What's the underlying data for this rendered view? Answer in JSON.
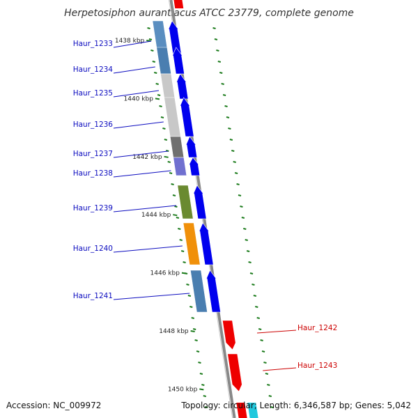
{
  "title": "Herpetosiphon aurantiacus ATCC 23779, complete genome",
  "footer": {
    "accession": "Accession: NC_009972",
    "summary": "Topology: circular; Length: 6,346,587 bp; Genes: 5,042"
  },
  "colors": {
    "forward_label": "#0b0bbf",
    "reverse_label": "#cc0000",
    "forward_cds": "#0000ee",
    "reverse_cds": "#ee0000",
    "backbone": "#888888",
    "tick": "#1a7a1a",
    "accent_cyan": "#22c8dd"
  },
  "kbp_ticks": [
    {
      "label": "1438 kbp",
      "pos": 1438
    },
    {
      "label": "1440 kbp",
      "pos": 1440
    },
    {
      "label": "1442 kbp",
      "pos": 1442
    },
    {
      "label": "1444 kbp",
      "pos": 1444
    },
    {
      "label": "1446 kbp",
      "pos": 1446
    },
    {
      "label": "1448 kbp",
      "pos": 1448
    },
    {
      "label": "1450 kbp",
      "pos": 1450
    }
  ],
  "genes": [
    {
      "name": "Haur_1233",
      "strand": "forward",
      "cog_color": "#5a8ec0"
    },
    {
      "name": "Haur_1234",
      "strand": "forward",
      "cog_color": "#4a7eb0"
    },
    {
      "name": "Haur_1235",
      "strand": "forward",
      "cog_color": "#c8c8c8"
    },
    {
      "name": "Haur_1236",
      "strand": "forward",
      "cog_color": "#c8c8c8"
    },
    {
      "name": "Haur_1237",
      "strand": "forward",
      "cog_color": "#707070"
    },
    {
      "name": "Haur_1238",
      "strand": "forward",
      "cog_color": "#7070d0"
    },
    {
      "name": "Haur_1239",
      "strand": "forward",
      "cog_color": "#6a8a30"
    },
    {
      "name": "Haur_1240",
      "strand": "forward",
      "cog_color": "#f0900a"
    },
    {
      "name": "Haur_1241",
      "strand": "forward",
      "cog_color": "#4a7eb0"
    },
    {
      "name": "Haur_1242",
      "strand": "reverse",
      "cog_color": ""
    },
    {
      "name": "Haur_1243",
      "strand": "reverse",
      "cog_color": ""
    }
  ]
}
